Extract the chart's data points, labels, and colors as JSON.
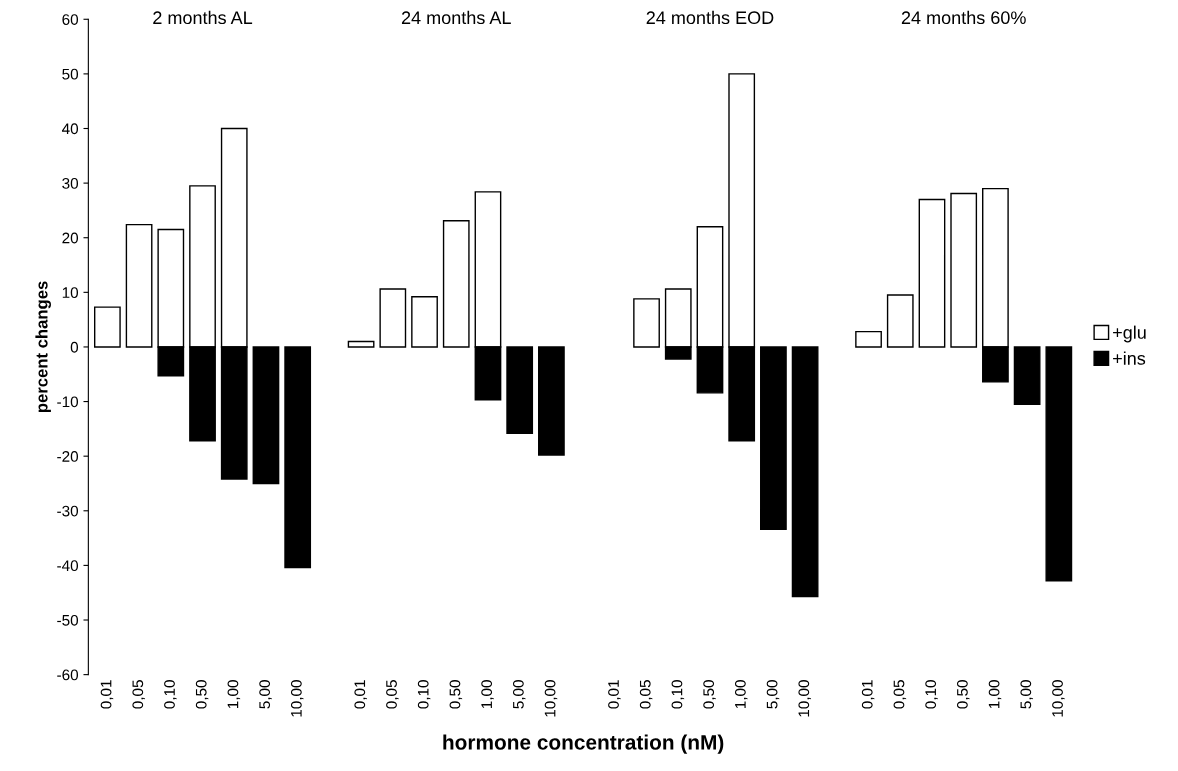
{
  "chart_data": {
    "type": "bar",
    "xlabel": "hormone concentration (nM)",
    "ylabel": "percent changes",
    "categories": [
      "0,01",
      "0,05",
      "0,10",
      "0,50",
      "1,00",
      "5,00",
      "10,00",
      null,
      "0,01",
      "0,05",
      "0,10",
      "0,50",
      "1,00",
      "5,00",
      "10,00",
      null,
      "0,01",
      "0,05",
      "0,10",
      "0,50",
      "1,00",
      "5,00",
      "10,00",
      null,
      "0,01",
      "0,05",
      "0,10",
      "0,50",
      "1,00",
      "5,00",
      "10,00"
    ],
    "series": [
      {
        "name": "+glu",
        "color": "#ffffff",
        "values": [
          7.3,
          22.4,
          21.5,
          29.5,
          40,
          null,
          null,
          null,
          1,
          10.6,
          9.2,
          23.1,
          28.4,
          null,
          null,
          null,
          null,
          8.8,
          10.6,
          22,
          50,
          null,
          null,
          null,
          2.8,
          9.5,
          27,
          28.1,
          29,
          null,
          null
        ]
      },
      {
        "name": "+ins",
        "color": "#000000",
        "values": [
          null,
          null,
          -5.3,
          -17.2,
          -24.2,
          -25,
          -40.4,
          null,
          null,
          null,
          null,
          null,
          -9.7,
          -15.8,
          -19.8,
          null,
          null,
          null,
          -2.2,
          -8.4,
          -17.2,
          -33.4,
          -45.7,
          null,
          null,
          null,
          null,
          null,
          -6.4,
          -10.5,
          -42.8
        ]
      }
    ],
    "ylim": [
      -60,
      60
    ],
    "yticks": [
      -60,
      -50,
      -40,
      -30,
      -20,
      -10,
      0,
      10,
      20,
      30,
      40,
      50,
      60
    ],
    "annotations": [
      "2 months AL",
      "24 months AL",
      "24 months EOD",
      "24 months 60%"
    ],
    "legend": "right",
    "grid": false
  }
}
